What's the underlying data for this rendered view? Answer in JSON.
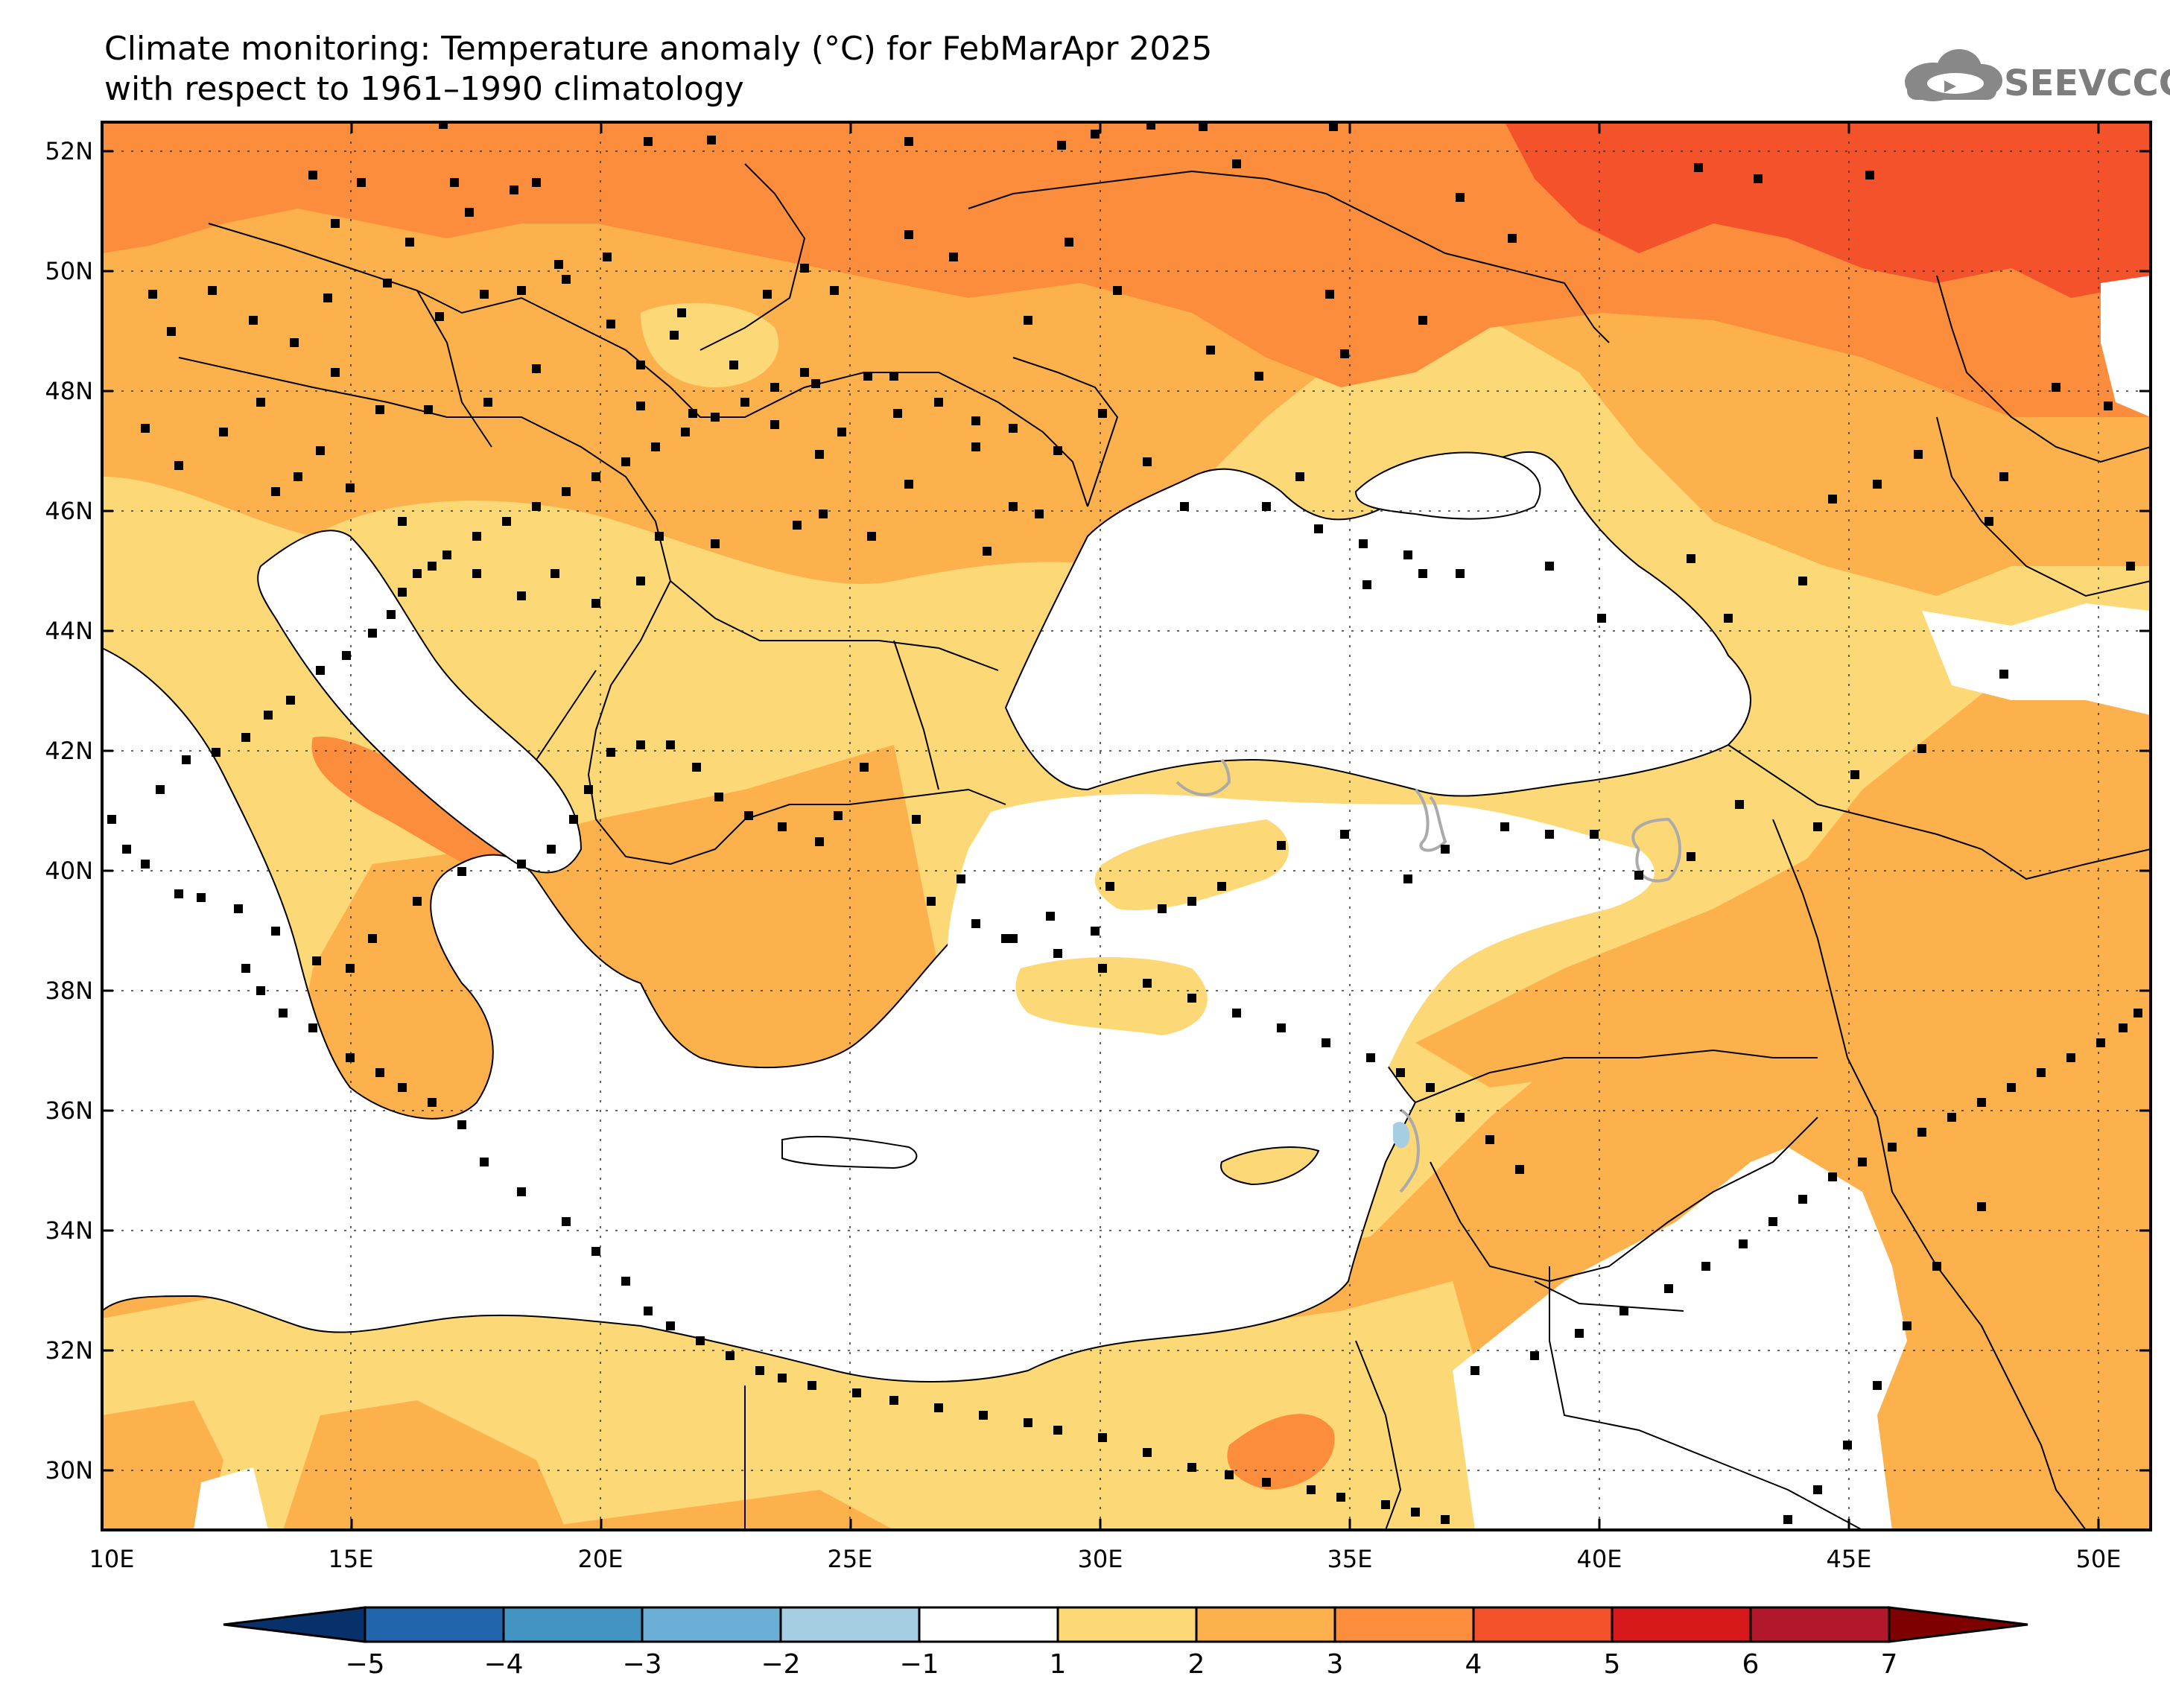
{
  "title": {
    "line1": "Climate monitoring: Temperature anomaly (°C) for FebMarApr 2025",
    "line2": "with respect to 1961–1990 climatology"
  },
  "logo": {
    "text": "SEEVCCC",
    "icon": "cloud-icon"
  },
  "axes": {
    "lat_labels": [
      "52N",
      "50N",
      "48N",
      "46N",
      "44N",
      "42N",
      "40N",
      "38N",
      "36N",
      "34N",
      "32N",
      "30N"
    ],
    "lon_labels": [
      "10E",
      "15E",
      "20E",
      "25E",
      "30E",
      "35E",
      "40E",
      "45E",
      "50E"
    ]
  },
  "colorbar": {
    "labels": [
      "−5",
      "−4",
      "−3",
      "−2",
      "−1",
      "1",
      "2",
      "3",
      "4",
      "5",
      "6",
      "7"
    ],
    "colors": [
      "#08306b",
      "#2166ac",
      "#4393c3",
      "#6baed6",
      "#a6cee3",
      "#ffffff",
      "#fdd876",
      "#fdb14d",
      "#fc8d3c",
      "#f4522b",
      "#d7191c",
      "#b2182b",
      "#7f0000"
    ]
  },
  "palette": {
    "land_light": "#fdd876",
    "land_medium": "#fdb14d",
    "land_orange": "#fc8d3c",
    "land_red": "#f4522b",
    "negative": "#a6cee3",
    "sea": "#ffffff"
  }
}
